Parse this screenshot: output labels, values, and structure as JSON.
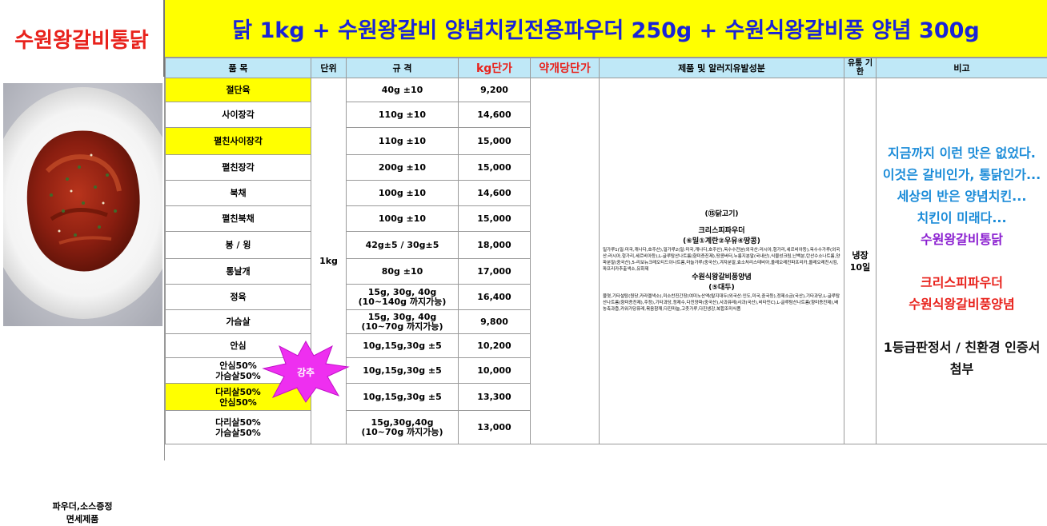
{
  "store_title": "수원왕갈비통닭",
  "banner": "닭 1kg + 수원왕갈비 양념치킨전용파우더 250g + 수원식왕갈비풍 양념 300g",
  "headers": {
    "item": "품  목",
    "unit": "단위",
    "spec": "규  격",
    "kg_price": "kg단가",
    "contract_price": "약개당단가",
    "ingredients": "제품 및 알러지유발성분",
    "shelf_life": "유통 기한",
    "remarks": "비고"
  },
  "unit_value": "1kg",
  "shelf_life_value": "냉장 10일",
  "rows": [
    {
      "item": "절단육",
      "spec": "40g ±10",
      "price": "9,200",
      "highlight": true
    },
    {
      "item": "사이장각",
      "spec": "110g ±10",
      "price": "14,600",
      "highlight": false
    },
    {
      "item": "펼친사이장각",
      "spec": "110g ±10",
      "price": "15,000",
      "highlight": true
    },
    {
      "item": "펼친장각",
      "spec": "200g ±10",
      "price": "15,000",
      "highlight": false
    },
    {
      "item": "북채",
      "spec": "100g ±10",
      "price": "14,600",
      "highlight": false
    },
    {
      "item": "펼친북채",
      "spec": "100g ±10",
      "price": "15,000",
      "highlight": false
    },
    {
      "item": "봉 / 윙",
      "spec": "42g±5 / 30g±5",
      "price": "18,000",
      "highlight": false
    },
    {
      "item": "통날개",
      "spec": "80g ±10",
      "price": "17,000",
      "highlight": false
    },
    {
      "item": "정육",
      "spec": "15g, 30g, 40g\n(10~140g 까지가능)",
      "price": "16,400",
      "highlight": false
    },
    {
      "item": "가슴살",
      "spec": "15g, 30g, 40g\n(10~70g 까지가능)",
      "price": "9,800",
      "highlight": false
    },
    {
      "item": "안심",
      "spec": "10g,15g,30g ±5",
      "price": "10,200",
      "highlight": false
    },
    {
      "item": "안심50%\n가슴살50%",
      "spec": "10g,15g,30g ±5",
      "price": "10,000",
      "highlight": false
    },
    {
      "item": "다리살50%\n안심50%",
      "spec": "10g,15g,30g ±5",
      "price": "13,300",
      "highlight": true
    },
    {
      "item": "다리살50%\n가슴살50%",
      "spec": "15g,30g,40g\n(10~70g 까지가능)",
      "price": "13,000",
      "highlight": false
    }
  ],
  "ingredients": {
    "line1": "(⑮닭고기)",
    "powder_name": "크리스피파우더",
    "powder_allergens": "(⑥밀①계란②우유④땅콩)",
    "powder_detail": "밀가루1(밀:미국,캐나다,호주산),밀가루2(밀:미국,캐나다,호주산),옥수수전분(외국산:러시아,헝가리,세르비아등),옥수수가루(외국산:러시아,헝가리,세르비아등),L-글루탐산나트륨(향미증진제),땅콩버터,누룽지분말(국내산),식물성크림,난백분,탄산수소나트륨,양파분말(중국산),5-리보뉴크레오티드이나트륨,마늘가루(중국산),겨자분말,효소처리스테비아,올레오레진파프리카,올레오레진시킴,파프리카추출색소,유화제",
    "sauce_name": "수원식왕갈비풍양념",
    "sauce_allergens": "(⑤대두)",
    "sauce_detail": "물엿,기타설탕(원당,카라멜색소),미소찬진간장(여미노산액(탈지대두(외국산:인도,미국,중국등),정제소금(국산),기타과당,L-글루탐산나트륨(향미증진제),주정),기타과당,정제수,다진양파(중국산),사과퓨레(사과(국산),비타민C),L-글루탐산나트륨(향미증진제),배농축과즙,카워가당퓨레,볶음참깨,다진마늘,고춧가루,다진생강,복합조미식품"
  },
  "remarks": {
    "line1": "지금까지 이런 맛은 없었다.",
    "line2": "이것은 갈비인가, 통닭인가...",
    "line3": "세상의 반은 양념치킨...",
    "line4": "치킨이 미래다...",
    "line5": "수원왕갈비통닭",
    "line6": "크리스피파우더",
    "line7": "수원식왕갈비풍양념",
    "line8": "1등급판정서 / 친환경 인증서 첨부"
  },
  "badge": "강추",
  "tax_note": "파우더,소스증정\n면세제품",
  "colors": {
    "banner_bg": "#ffff00",
    "banner_text": "#1a24d6",
    "title_red": "#e8221c",
    "header_bg": "#bfe8f7",
    "blue_text": "#1a8bd8",
    "purple_text": "#8a1ed0",
    "badge_pink": "#ee2ff0"
  }
}
